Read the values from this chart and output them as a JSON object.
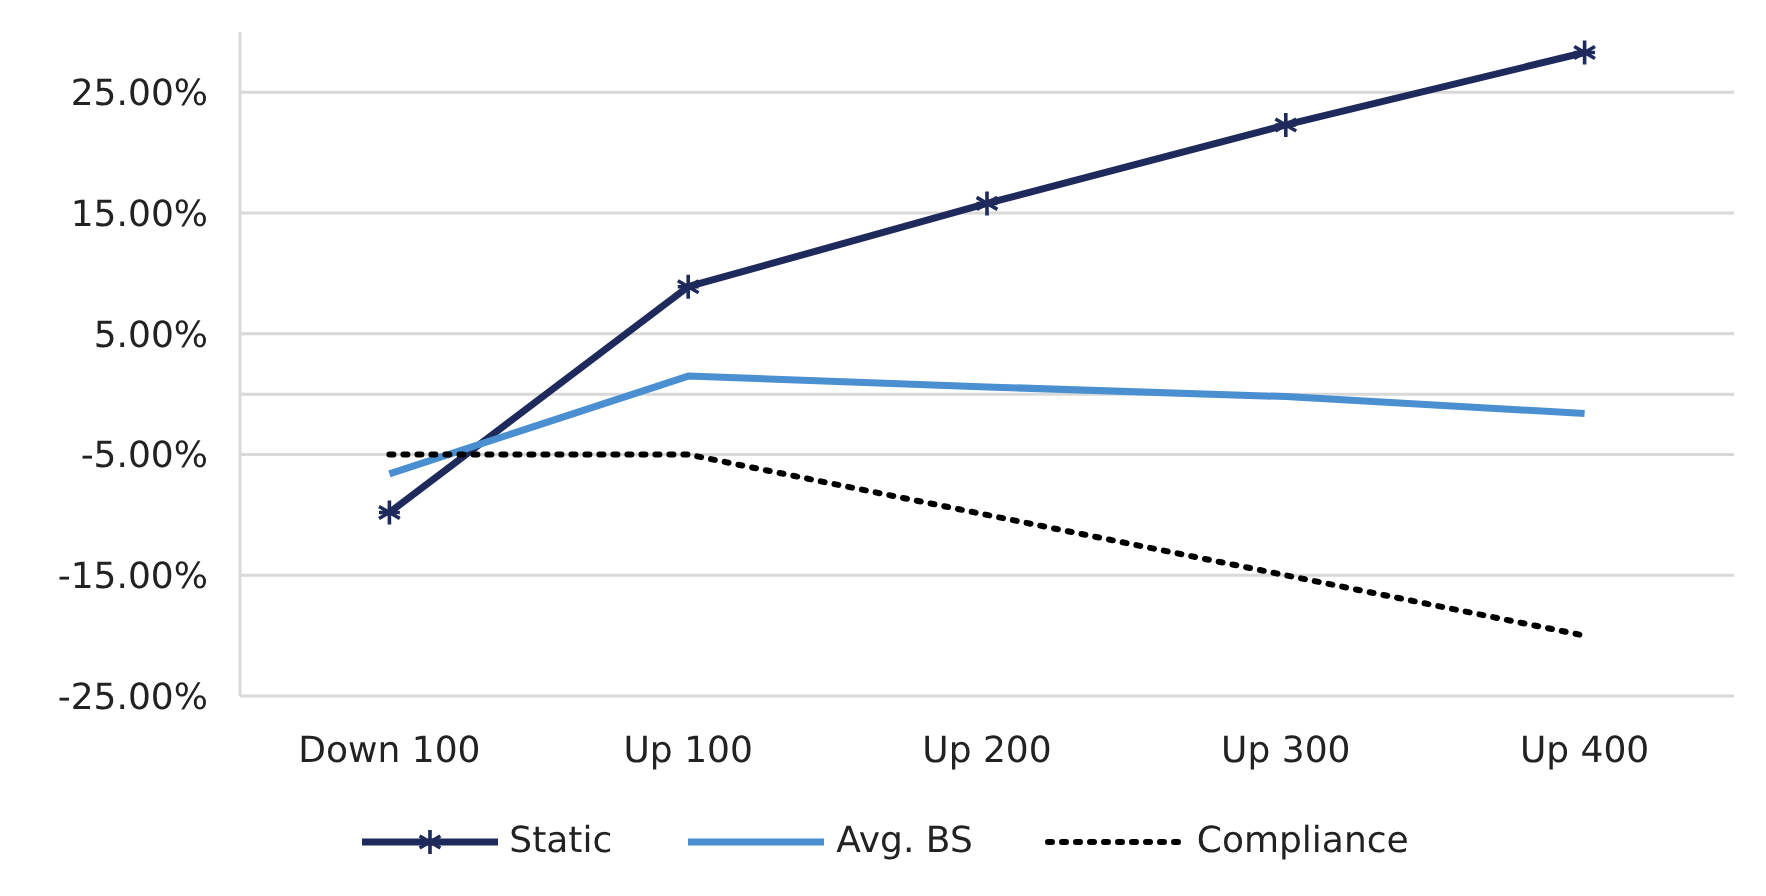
{
  "chart_data": {
    "type": "line",
    "categories": [
      "Down 100",
      "Up 100",
      "Up 200",
      "Up 300",
      "Up 400"
    ],
    "series": [
      {
        "name": "Static",
        "color": "#1f2a5c",
        "values": [
          -9.8,
          8.9,
          15.8,
          22.3,
          28.3
        ],
        "marker": "cross",
        "line_style": "solid"
      },
      {
        "name": "Avg. BS",
        "color": "#4a8fd0",
        "values": [
          -6.6,
          1.5,
          0.6,
          -0.2,
          -1.6
        ],
        "marker": "none",
        "line_style": "solid"
      },
      {
        "name": "Compliance",
        "color": "#000000",
        "values": [
          -5,
          -5,
          -10,
          -15,
          -20
        ],
        "marker": "none",
        "line_style": "dotted"
      }
    ],
    "ylim": [
      -25,
      30
    ],
    "yticks": [
      {
        "value": -25,
        "label": "-25.00%"
      },
      {
        "value": -15,
        "label": "-15.00%"
      },
      {
        "value": -5,
        "label": "-5.00%"
      },
      {
        "value": 5,
        "label": "5.00%"
      },
      {
        "value": 15,
        "label": "15.00%"
      },
      {
        "value": 25,
        "label": "25.00%"
      }
    ],
    "ref_lines": [
      {
        "axis": "y",
        "value": 0,
        "color": "#d9d9d9"
      }
    ],
    "grid": "y",
    "legend": "bottom"
  }
}
